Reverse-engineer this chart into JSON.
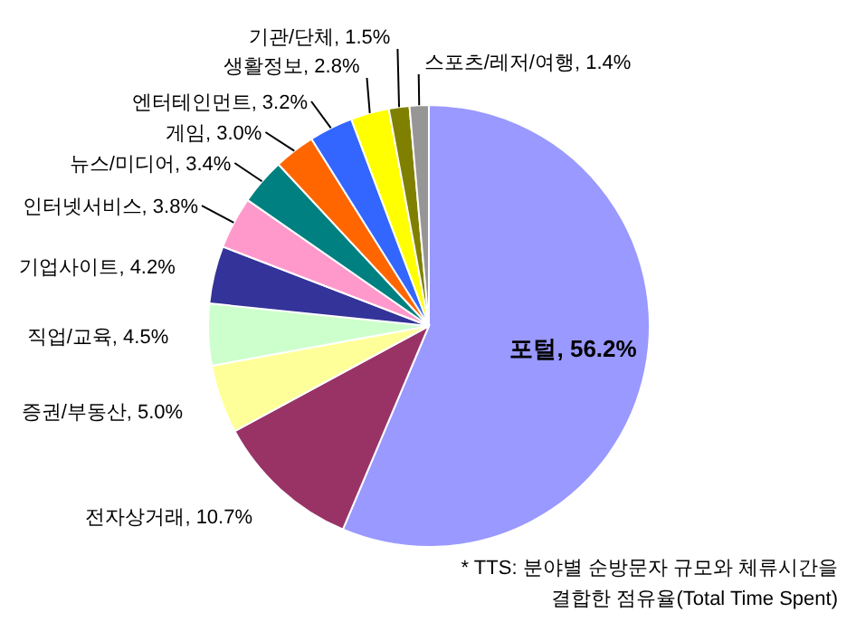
{
  "chart_data": {
    "type": "pie",
    "categories": [
      "포털",
      "전자상거래",
      "증권/부동산",
      "직업/교육",
      "기업사이트",
      "인터넷서비스",
      "뉴스/미디어",
      "게임",
      "엔터테인먼트",
      "생활정보",
      "기관/단체",
      "스포츠/레저/여행"
    ],
    "values": [
      56.2,
      10.7,
      5.0,
      4.5,
      4.2,
      3.8,
      3.4,
      3.0,
      3.2,
      2.8,
      1.5,
      1.4
    ],
    "colors": [
      "#9999ff",
      "#993366",
      "#ffff99",
      "#ccffcc",
      "#333399",
      "#ff99cc",
      "#008080",
      "#ff6600",
      "#3366ff",
      "#ffff00",
      "#808000",
      "#969696"
    ],
    "value_labels": [
      ", 56.2%",
      ", 10.7%",
      ", 5.0%",
      ", 4.5%",
      ", 4.2%",
      ", 3.8%",
      ", 3.4%",
      ", 3.0%",
      ", 3.2%",
      ", 2.8%",
      ", 1.5%",
      ", 1.4%"
    ],
    "annotations": [
      "* TTS: 분야별 순방문자 규모와 체류시간을 결합한 점유율(Total Time Spent)"
    ]
  }
}
